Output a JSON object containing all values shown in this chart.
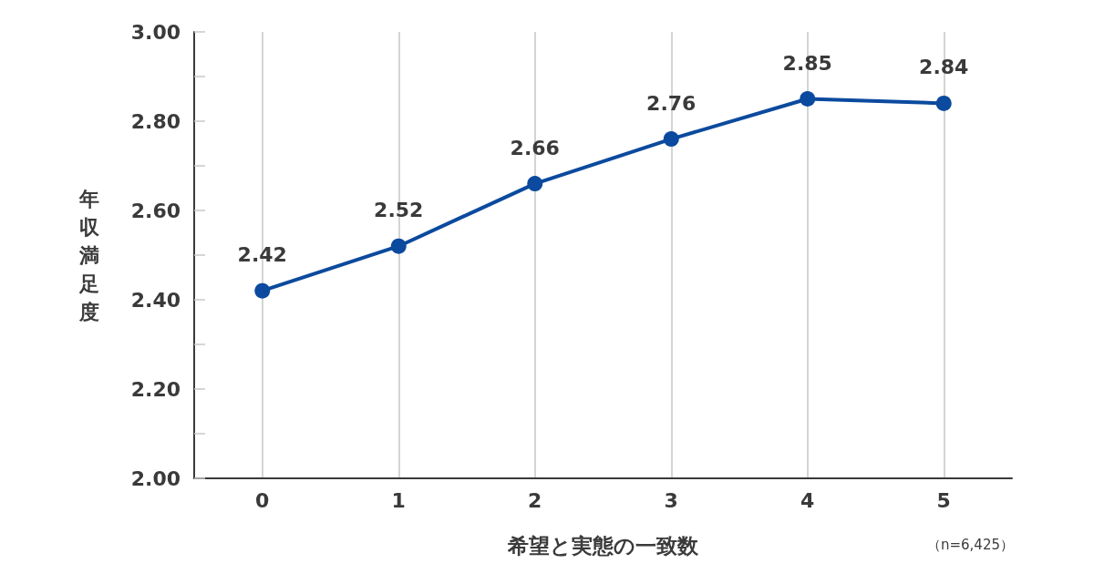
{
  "chart_data": {
    "type": "line",
    "categories": [
      "0",
      "1",
      "2",
      "3",
      "4",
      "5"
    ],
    "values": [
      2.42,
      2.52,
      2.66,
      2.76,
      2.85,
      2.84
    ],
    "color": "#0b4a9e",
    "xlabel": "希望と実態の一致数",
    "ylabel": "年収満足度",
    "annotations": [
      "（n=6,425）"
    ],
    "ylim": [
      2,
      3
    ],
    "yticks": [
      {
        "value": 2,
        "label": "2.00"
      },
      {
        "value": 2.1,
        "label": null
      },
      {
        "value": 2.2,
        "label": "2.20"
      },
      {
        "value": 2.3,
        "label": null
      },
      {
        "value": 2.4,
        "label": "2.40"
      },
      {
        "value": 2.5,
        "label": null
      },
      {
        "value": 2.6,
        "label": "2.60"
      },
      {
        "value": 2.7,
        "label": null
      },
      {
        "value": 2.8,
        "label": "2.80"
      },
      {
        "value": 2.9,
        "label": null
      },
      {
        "value": 3,
        "label": "3.00"
      }
    ],
    "grid": "x",
    "data_labels": true,
    "marker": "circle",
    "line_style": "solid"
  }
}
